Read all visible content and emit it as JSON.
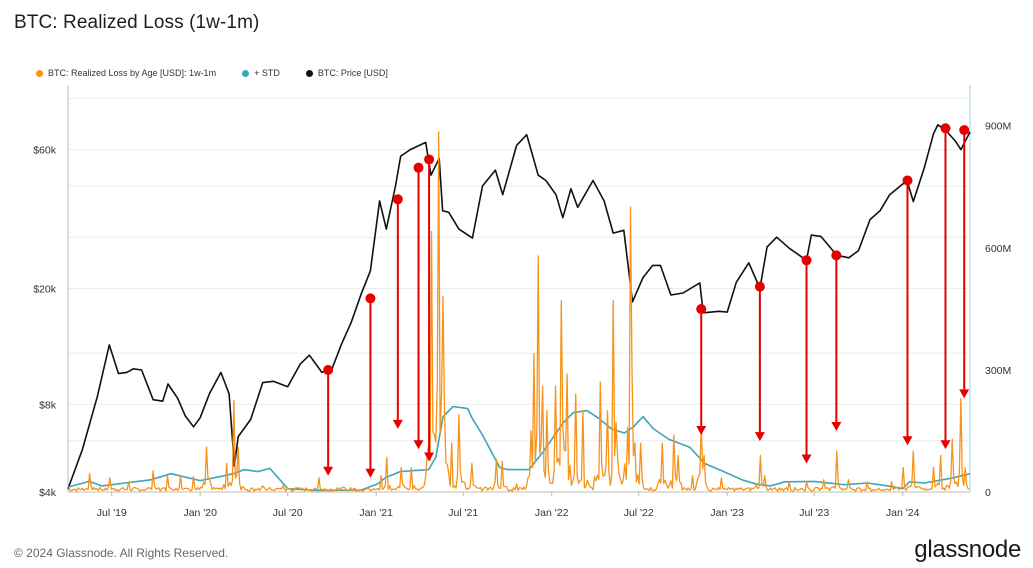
{
  "header": {
    "title": "BTC: Realized Loss (1w-1m)"
  },
  "legend": [
    {
      "label": "BTC: Realized Loss by Age [USD]: 1w-1m",
      "color": "#f7931a"
    },
    {
      "label": "+ STD",
      "color": "#3aa6b9"
    },
    {
      "label": "BTC: Price [USD]",
      "color": "#111111"
    }
  ],
  "footer": {
    "copyright": "© 2024 Glassnode. All Rights Reserved.",
    "brand": "glassnode"
  },
  "chart_data": {
    "type": "line",
    "title": "BTC: Realized Loss (1w-1m)",
    "x_range": [
      "2019-04-01",
      "2024-05-20"
    ],
    "x_ticks": [
      {
        "label": "Jul '19",
        "date": "2019-07-01"
      },
      {
        "label": "Jan '20",
        "date": "2020-01-01"
      },
      {
        "label": "Jul '20",
        "date": "2020-07-01"
      },
      {
        "label": "Jan '21",
        "date": "2021-01-01"
      },
      {
        "label": "Jul '21",
        "date": "2021-07-01"
      },
      {
        "label": "Jan '22",
        "date": "2022-01-01"
      },
      {
        "label": "Jul '22",
        "date": "2022-07-01"
      },
      {
        "label": "Jan '23",
        "date": "2023-01-01"
      },
      {
        "label": "Jul '23",
        "date": "2023-07-01"
      },
      {
        "label": "Jan '24",
        "date": "2024-01-01"
      }
    ],
    "y_left": {
      "scale": "log",
      "range": [
        4000,
        100000
      ],
      "ticks": [
        {
          "label": "$4k",
          "value": 4000
        },
        {
          "label": "$8k",
          "value": 8000
        },
        {
          "label": "$20k",
          "value": 20000
        },
        {
          "label": "$60k",
          "value": 60000
        }
      ]
    },
    "y_right": {
      "scale": "linear",
      "range": [
        0,
        1000000000
      ],
      "ticks": [
        {
          "label": "0",
          "value": 0
        },
        {
          "label": "300M",
          "value": 300000000
        },
        {
          "label": "600M",
          "value": 600000000
        },
        {
          "label": "900M",
          "value": 900000000
        }
      ]
    },
    "grid": "horizontal",
    "legend_position": "top-left",
    "series": [
      {
        "name": "BTC: Price [USD]",
        "axis": "left",
        "color": "#111111",
        "x": [
          "2019-04-01",
          "2019-05-01",
          "2019-06-01",
          "2019-06-26",
          "2019-07-15",
          "2019-08-01",
          "2019-08-15",
          "2019-09-01",
          "2019-09-25",
          "2019-10-15",
          "2019-10-26",
          "2019-11-15",
          "2019-12-01",
          "2019-12-18",
          "2020-01-01",
          "2020-01-20",
          "2020-02-13",
          "2020-03-01",
          "2020-03-12",
          "2020-03-20",
          "2020-04-15",
          "2020-05-10",
          "2020-06-01",
          "2020-07-01",
          "2020-07-27",
          "2020-08-15",
          "2020-09-10",
          "2020-10-01",
          "2020-10-21",
          "2020-11-10",
          "2020-12-01",
          "2020-12-20",
          "2021-01-08",
          "2021-01-22",
          "2021-02-10",
          "2021-02-21",
          "2021-03-13",
          "2021-04-14",
          "2021-04-25",
          "2021-05-12",
          "2021-05-19",
          "2021-06-01",
          "2021-06-22",
          "2021-07-20",
          "2021-08-10",
          "2021-09-06",
          "2021-09-21",
          "2021-10-20",
          "2021-11-10",
          "2021-12-04",
          "2021-12-20",
          "2022-01-10",
          "2022-01-24",
          "2022-02-10",
          "2022-02-24",
          "2022-03-28",
          "2022-04-20",
          "2022-05-09",
          "2022-05-31",
          "2022-06-18",
          "2022-07-10",
          "2022-07-30",
          "2022-08-15",
          "2022-09-06",
          "2022-10-01",
          "2022-11-05",
          "2022-11-12",
          "2022-12-15",
          "2023-01-01",
          "2023-01-20",
          "2023-02-15",
          "2023-03-10",
          "2023-03-25",
          "2023-04-14",
          "2023-05-10",
          "2023-06-15",
          "2023-06-25",
          "2023-07-15",
          "2023-08-17",
          "2023-09-11",
          "2023-10-01",
          "2023-10-25",
          "2023-11-15",
          "2023-12-05",
          "2024-01-10",
          "2024-01-23",
          "2024-02-15",
          "2024-03-05",
          "2024-03-14",
          "2024-04-01",
          "2024-04-20",
          "2024-05-01",
          "2024-05-20"
        ],
        "values": [
          4100,
          5600,
          8500,
          12800,
          10200,
          10300,
          10600,
          10500,
          8300,
          8200,
          9400,
          8400,
          7300,
          6700,
          7200,
          8700,
          10300,
          8700,
          4900,
          6200,
          7100,
          9500,
          9600,
          9200,
          11000,
          11800,
          10300,
          10600,
          12900,
          15300,
          19200,
          23000,
          40000,
          32000,
          44800,
          57000,
          60000,
          63500,
          49000,
          56000,
          37000,
          36500,
          32000,
          29800,
          45000,
          51000,
          42000,
          62000,
          67500,
          49000,
          47000,
          42000,
          35000,
          44000,
          38000,
          47000,
          40000,
          31000,
          31700,
          18000,
          21800,
          24000,
          24000,
          19000,
          19300,
          20900,
          16500,
          16700,
          16600,
          21000,
          24500,
          20000,
          27800,
          30000,
          27500,
          25000,
          30500,
          30200,
          26000,
          25500,
          27000,
          34500,
          37000,
          42000,
          47000,
          39800,
          52000,
          68000,
          73000,
          69500,
          64000,
          60000,
          69000
        ]
      },
      {
        "name": "+ STD",
        "axis": "right",
        "color": "#3aa6b9",
        "x": [
          "2019-04-01",
          "2019-05-15",
          "2019-06-10",
          "2019-09-20",
          "2019-11-01",
          "2020-01-01",
          "2020-02-20",
          "2020-03-10",
          "2020-04-01",
          "2020-04-30",
          "2020-05-25",
          "2020-07-01",
          "2020-09-01",
          "2020-12-01",
          "2021-01-04",
          "2021-01-20",
          "2021-02-20",
          "2021-04-20",
          "2021-05-05",
          "2021-05-20",
          "2021-06-10",
          "2021-07-10",
          "2021-07-20",
          "2021-08-10",
          "2021-09-15",
          "2021-10-01",
          "2021-11-15",
          "2021-12-15",
          "2022-01-25",
          "2022-02-15",
          "2022-03-15",
          "2022-04-10",
          "2022-05-05",
          "2022-06-01",
          "2022-06-20",
          "2022-07-10",
          "2022-08-01",
          "2022-09-01",
          "2022-10-15",
          "2022-11-15",
          "2022-12-25",
          "2023-02-01",
          "2023-03-01",
          "2023-04-01",
          "2023-05-01",
          "2023-07-01",
          "2023-09-01",
          "2023-10-20",
          "2023-12-01",
          "2024-01-01",
          "2024-01-15",
          "2024-02-15",
          "2024-03-15",
          "2024-04-15",
          "2024-05-20"
        ],
        "values": [
          12000000,
          26000000,
          15000000,
          30000000,
          45000000,
          28000000,
          40000000,
          45000000,
          55000000,
          50000000,
          58000000,
          8000000,
          4000000,
          5000000,
          20000000,
          35000000,
          50000000,
          55000000,
          85000000,
          185000000,
          210000000,
          205000000,
          180000000,
          140000000,
          60000000,
          55000000,
          55000000,
          100000000,
          170000000,
          195000000,
          200000000,
          180000000,
          155000000,
          145000000,
          160000000,
          185000000,
          155000000,
          130000000,
          110000000,
          70000000,
          50000000,
          30000000,
          20000000,
          15000000,
          25000000,
          26000000,
          18000000,
          22000000,
          15000000,
          8000000,
          25000000,
          22000000,
          28000000,
          35000000,
          45000000
        ]
      },
      {
        "name": "BTC: Realized Loss by Age [USD]: 1w-1m",
        "axis": "right",
        "color": "#f7931a",
        "style": "spiky",
        "baseline": 6000000,
        "spikes": [
          {
            "x": "2019-05-15",
            "value": 45000000
          },
          {
            "x": "2019-06-27",
            "value": 35000000
          },
          {
            "x": "2019-08-05",
            "value": 25000000
          },
          {
            "x": "2019-09-25",
            "value": 52000000
          },
          {
            "x": "2019-10-25",
            "value": 40000000
          },
          {
            "x": "2019-11-22",
            "value": 40000000
          },
          {
            "x": "2019-12-18",
            "value": 38000000
          },
          {
            "x": "2020-01-15",
            "value": 110000000
          },
          {
            "x": "2020-02-25",
            "value": 70000000
          },
          {
            "x": "2020-03-12",
            "value": 225000000
          },
          {
            "x": "2020-03-20",
            "value": 110000000
          },
          {
            "x": "2020-05-10",
            "value": 15000000
          },
          {
            "x": "2020-06-20",
            "value": 15000000
          },
          {
            "x": "2020-09-05",
            "value": 35000000
          },
          {
            "x": "2020-10-25",
            "value": 12000000
          },
          {
            "x": "2020-12-28",
            "value": 8000000
          },
          {
            "x": "2021-01-11",
            "value": 40000000
          },
          {
            "x": "2021-01-22",
            "value": 85000000
          },
          {
            "x": "2021-02-22",
            "value": 60000000
          },
          {
            "x": "2021-03-15",
            "value": 60000000
          },
          {
            "x": "2021-04-18",
            "value": 95000000
          },
          {
            "x": "2021-04-25",
            "value": 640000000
          },
          {
            "x": "2021-05-12",
            "value": 885000000
          },
          {
            "x": "2021-05-19",
            "value": 480000000
          },
          {
            "x": "2021-05-24",
            "value": 200000000
          },
          {
            "x": "2021-06-08",
            "value": 120000000
          },
          {
            "x": "2021-06-22",
            "value": 190000000
          },
          {
            "x": "2021-07-20",
            "value": 70000000
          },
          {
            "x": "2021-09-07",
            "value": 80000000
          },
          {
            "x": "2021-09-21",
            "value": 75000000
          },
          {
            "x": "2021-10-20",
            "value": 20000000
          },
          {
            "x": "2021-11-18",
            "value": 150000000
          },
          {
            "x": "2021-11-26",
            "value": 340000000
          },
          {
            "x": "2021-12-04",
            "value": 580000000
          },
          {
            "x": "2021-12-13",
            "value": 260000000
          },
          {
            "x": "2021-12-22",
            "value": 200000000
          },
          {
            "x": "2022-01-10",
            "value": 260000000
          },
          {
            "x": "2022-01-22",
            "value": 470000000
          },
          {
            "x": "2022-02-01",
            "value": 290000000
          },
          {
            "x": "2022-02-20",
            "value": 240000000
          },
          {
            "x": "2022-03-07",
            "value": 200000000
          },
          {
            "x": "2022-04-11",
            "value": 270000000
          },
          {
            "x": "2022-04-26",
            "value": 200000000
          },
          {
            "x": "2022-05-09",
            "value": 470000000
          },
          {
            "x": "2022-05-15",
            "value": 170000000
          },
          {
            "x": "2022-06-13",
            "value": 700000000
          },
          {
            "x": "2022-06-18",
            "value": 300000000
          },
          {
            "x": "2022-07-05",
            "value": 120000000
          },
          {
            "x": "2022-08-19",
            "value": 120000000
          },
          {
            "x": "2022-09-13",
            "value": 140000000
          },
          {
            "x": "2022-09-21",
            "value": 90000000
          },
          {
            "x": "2022-10-20",
            "value": 40000000
          },
          {
            "x": "2022-11-09",
            "value": 160000000
          },
          {
            "x": "2022-11-14",
            "value": 90000000
          },
          {
            "x": "2022-12-20",
            "value": 35000000
          },
          {
            "x": "2023-03-10",
            "value": 90000000
          },
          {
            "x": "2023-03-20",
            "value": 40000000
          },
          {
            "x": "2023-05-10",
            "value": 25000000
          },
          {
            "x": "2023-06-15",
            "value": 25000000
          },
          {
            "x": "2023-07-20",
            "value": 30000000
          },
          {
            "x": "2023-08-18",
            "value": 100000000
          },
          {
            "x": "2023-09-10",
            "value": 30000000
          },
          {
            "x": "2023-10-20",
            "value": 25000000
          },
          {
            "x": "2023-12-10",
            "value": 25000000
          },
          {
            "x": "2024-01-03",
            "value": 60000000
          },
          {
            "x": "2024-01-23",
            "value": 100000000
          },
          {
            "x": "2024-03-05",
            "value": 60000000
          },
          {
            "x": "2024-03-20",
            "value": 90000000
          },
          {
            "x": "2024-04-13",
            "value": 130000000
          },
          {
            "x": "2024-05-01",
            "value": 230000000
          },
          {
            "x": "2024-05-10",
            "value": 60000000
          }
        ]
      }
    ],
    "annotations": [
      {
        "type": "arrow",
        "color": "#e60000",
        "x": "2020-09-23",
        "from": 10500,
        "to_right": 40000000
      },
      {
        "type": "arrow",
        "color": "#e60000",
        "x": "2020-12-20",
        "from": 18500,
        "to_right": 35000000
      },
      {
        "type": "arrow",
        "color": "#e60000",
        "x": "2021-02-15",
        "from": 40500,
        "to_right": 155000000
      },
      {
        "type": "arrow",
        "color": "#e60000",
        "x": "2021-03-30",
        "from": 52000,
        "to_right": 105000000
      },
      {
        "type": "arrow",
        "color": "#e60000",
        "x": "2021-04-21",
        "from": 55500,
        "to_right": 75000000
      },
      {
        "type": "arrow",
        "color": "#e60000",
        "x": "2022-11-08",
        "from": 17000,
        "to_right": 140000000
      },
      {
        "type": "arrow",
        "color": "#e60000",
        "x": "2023-03-10",
        "from": 20300,
        "to_right": 125000000
      },
      {
        "type": "arrow",
        "color": "#e60000",
        "x": "2023-06-15",
        "from": 25000,
        "to_right": 70000000
      },
      {
        "type": "arrow",
        "color": "#e60000",
        "x": "2023-08-16",
        "from": 26000,
        "to_right": 150000000
      },
      {
        "type": "arrow",
        "color": "#e60000",
        "x": "2024-01-11",
        "from": 47000,
        "to_right": 115000000
      },
      {
        "type": "arrow",
        "color": "#e60000",
        "x": "2024-03-30",
        "from": 71000,
        "to_right": 105000000
      },
      {
        "type": "arrow",
        "color": "#e60000",
        "x": "2024-05-08",
        "from": 70000,
        "to_right": 230000000
      }
    ]
  }
}
